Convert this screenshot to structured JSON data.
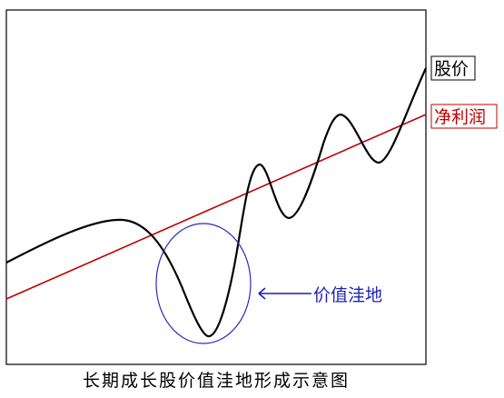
{
  "labels": {
    "price": "股价",
    "profit": "净利润",
    "value_dip": "价值洼地"
  },
  "caption": "长期成长股价值洼地形成示意图",
  "colors": {
    "price_line": "#000000",
    "profit_line": "#c00000",
    "circle": "#2a2ab8",
    "annotation": "#1f1fb5",
    "frame": "#000000"
  }
}
